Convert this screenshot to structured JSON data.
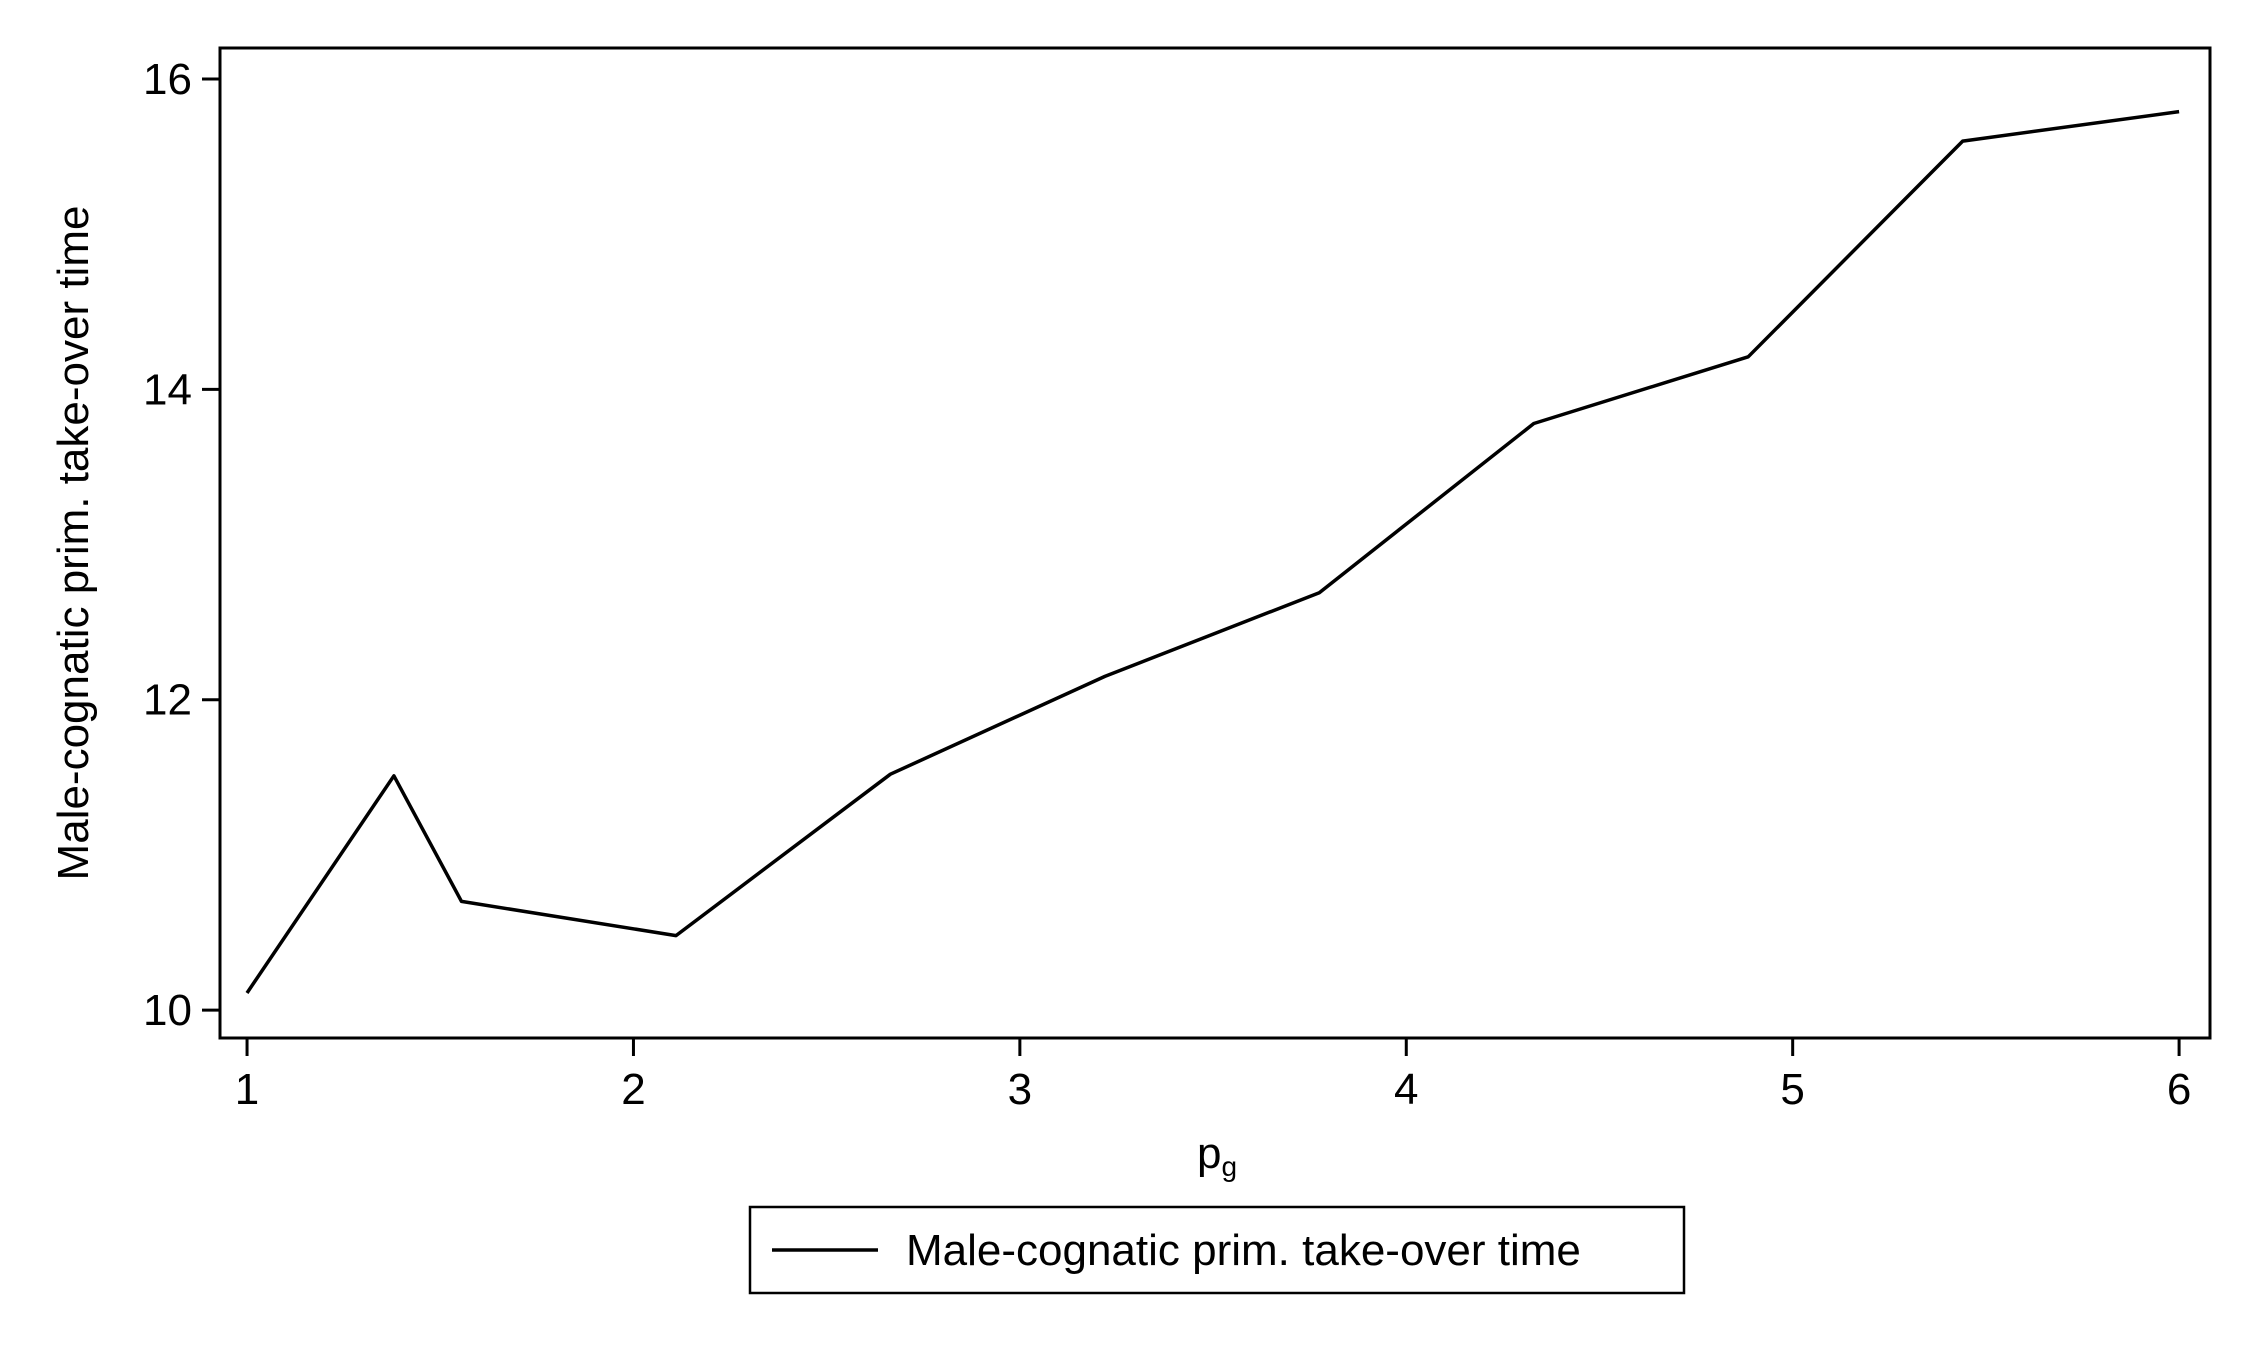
{
  "chart_data": {
    "type": "line",
    "title": "",
    "xlabel": "p",
    "xlabel_subscript": "g",
    "ylabel": "Male-cognatic prim. take-over time",
    "xlim": [
      0.93,
      6.08
    ],
    "ylim": [
      9.82,
      16.2
    ],
    "xticks": [
      1,
      2,
      3,
      4,
      5,
      6
    ],
    "yticks": [
      10,
      12,
      14,
      16
    ],
    "grid": false,
    "legend_position": "bottom",
    "line_color": "#000000",
    "series": [
      {
        "name": "Male-cognatic prim. take-over time",
        "x": [
          1.0,
          1.38,
          1.555,
          2.11,
          2.665,
          3.22,
          3.775,
          4.33,
          4.885,
          5.44,
          6.0
        ],
        "y": [
          10.11,
          11.51,
          10.7,
          10.48,
          11.52,
          12.15,
          12.69,
          13.78,
          14.21,
          15.6,
          15.79
        ]
      }
    ]
  }
}
